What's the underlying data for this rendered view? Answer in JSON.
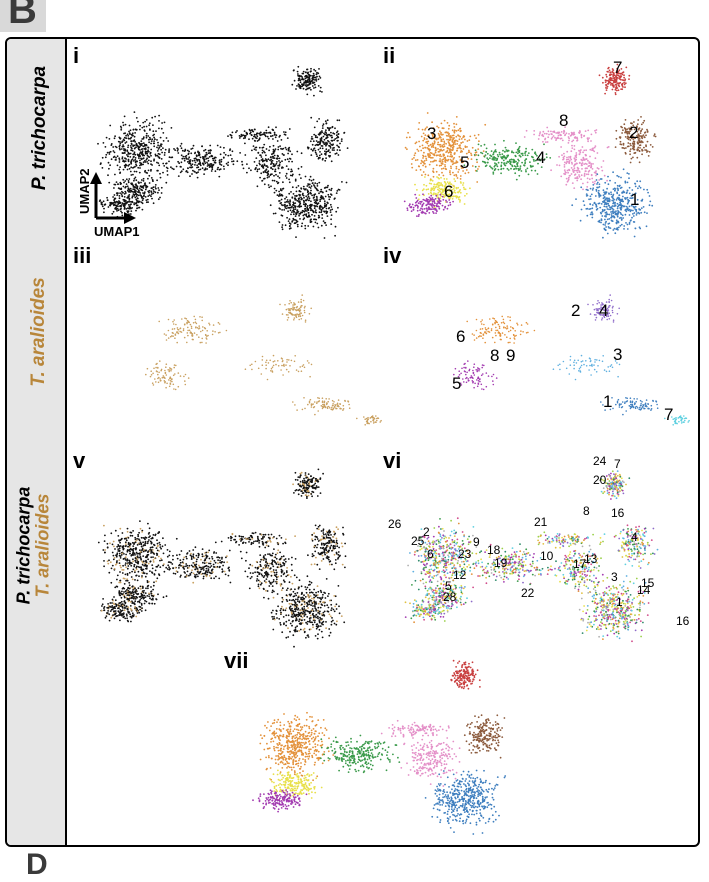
{
  "corner_letter": "B",
  "bottom_letter": "D",
  "species": {
    "p": {
      "name": "P. trichocarpa",
      "color": "#000000"
    },
    "t": {
      "name": "T. aralioides",
      "color": "#b8863a"
    }
  },
  "axes": {
    "x": "UMAP1",
    "y": "UMAP2"
  },
  "panels": [
    {
      "id": "i",
      "label": "i",
      "coloring": "p-black"
    },
    {
      "id": "ii",
      "label": "ii",
      "coloring": "p-clusters",
      "clusters": [
        "1",
        "2",
        "3",
        "4",
        "5",
        "6",
        "7",
        "8"
      ]
    },
    {
      "id": "iii",
      "label": "iii",
      "coloring": "t-tan"
    },
    {
      "id": "iv",
      "label": "iv",
      "coloring": "t-clusters",
      "clusters": [
        "1",
        "2",
        "3",
        "4",
        "5",
        "6",
        "7",
        "8",
        "9"
      ]
    },
    {
      "id": "v",
      "label": "v",
      "coloring": "combined"
    },
    {
      "id": "vi",
      "label": "vi",
      "coloring": "combined-clusters",
      "clusters": [
        "1",
        "2",
        "3",
        "4",
        "5",
        "6",
        "7",
        "8",
        "9",
        "10",
        "12",
        "13",
        "14",
        "15",
        "16",
        "17",
        "18",
        "19",
        "20",
        "21",
        "22",
        "23",
        "24",
        "25",
        "26",
        "27",
        "28"
      ]
    },
    {
      "id": "vii",
      "label": "vii",
      "coloring": "combined-transfer"
    }
  ],
  "cluster_colors": {
    "c1": "#3f7fbf",
    "c2": "#8b5a3c",
    "c3": "#e3913a",
    "c4": "#3a9a4a",
    "c5": "#e8e04a",
    "c6": "#a23ab0",
    "c7": "#c94040",
    "c8": "#e490c8",
    "gray": "#9a9a9a",
    "cyan": "#5fd0e0",
    "tan": "#c9a060"
  }
}
